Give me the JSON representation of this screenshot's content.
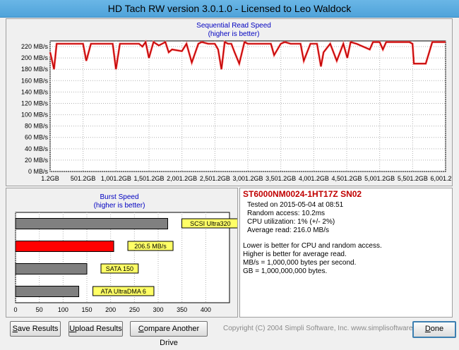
{
  "window": {
    "title": "HD Tach RW version 3.0.1.0 - Licensed to Leo Waldock"
  },
  "read_chart": {
    "title": "Sequential Read Speed",
    "subtitle": "(higher is better)",
    "y_tick_labels": [
      "0 MB/s",
      "20 MB/s",
      "40 MB/s",
      "60 MB/s",
      "80 MB/s",
      "100 MB/s",
      "120 MB/s",
      "140 MB/s",
      "160 MB/s",
      "180 MB/s",
      "200 MB/s",
      "220 MB/s"
    ],
    "x_tick_labels": [
      "1.2GB",
      "501.2GB",
      "1,001.2GB",
      "1,501.2GB",
      "2,001.2GB",
      "2,501.2GB",
      "3,001.2GB",
      "3,501.2GB",
      "4,001.2GB",
      "4,501.2GB",
      "5,001.2GB",
      "5,501.2GB",
      "6,001.2GB"
    ]
  },
  "burst_chart": {
    "title": "Burst Speed",
    "subtitle": "(higher is better)",
    "x_tick_labels": [
      "0",
      "50",
      "100",
      "150",
      "200",
      "250",
      "300",
      "350",
      "400"
    ]
  },
  "info": {
    "drive": "ST6000NM0024-1HT17Z SN02",
    "tested_on": "Tested on 2015-05-04 at 08:51",
    "random_access": "Random access: 10.2ms",
    "cpu": "CPU utilization: 1% (+/- 2%)",
    "avg_read": "Average read: 216.0 MB/s",
    "note1": "Lower is better for CPU and random access.",
    "note2": "Higher is better for average read.",
    "note3": "MB/s = 1,000,000 bytes per second.",
    "note4": "GB = 1,000,000,000 bytes."
  },
  "buttons": {
    "save_u": "S",
    "save_rest": "ave Results",
    "upload_u": "U",
    "upload_rest": "pload Results",
    "compare_u": "C",
    "compare_rest": "ompare Another Drive",
    "done_u": "D",
    "done_rest": "one"
  },
  "copyright": "Copyright (C) 2004 Simpli Software, Inc. www.simplisoftware.com",
  "colors": {
    "read_line": "#c00000",
    "burst_highlight": "#ff0000",
    "bar_gray": "#808080",
    "label_yellow": "#ffff66"
  },
  "chart_data": [
    {
      "type": "line",
      "title": "Sequential Read Speed",
      "subtitle": "(higher is better)",
      "xlabel": "",
      "ylabel": "",
      "xlim": [
        1.2,
        6001.2
      ],
      "ylim": [
        0,
        230
      ],
      "grid": true,
      "series": [
        {
          "x": [
            1.2,
            60,
            100,
            150,
            500,
            550,
            620,
            950,
            1000,
            1060,
            1350,
            1400,
            1450,
            1500,
            1570,
            1650,
            1750,
            1800,
            1850,
            2000,
            2070,
            2150,
            2250,
            2300,
            2400,
            2500,
            2550,
            2600,
            2650,
            2700,
            2750,
            2800,
            2870,
            2950,
            3000,
            3350,
            3400,
            3500,
            3560,
            3650,
            3800,
            3850,
            3950,
            4050,
            4110,
            4150,
            4250,
            4350,
            4450,
            4510,
            4560,
            4650,
            4850,
            4900,
            5000,
            5050,
            5100,
            5400,
            5450,
            5500,
            5520,
            5700,
            5800,
            5850,
            5950,
            6001.2
          ],
          "y": [
            210,
            180,
            225,
            225,
            225,
            195,
            225,
            225,
            180,
            225,
            225,
            220,
            228,
            200,
            228,
            222,
            228,
            210,
            215,
            212,
            225,
            192,
            225,
            228,
            225,
            225,
            215,
            180,
            228,
            225,
            225,
            210,
            190,
            228,
            225,
            225,
            205,
            225,
            228,
            225,
            225,
            195,
            225,
            225,
            185,
            210,
            225,
            195,
            225,
            200,
            228,
            225,
            215,
            228,
            228,
            215,
            228,
            228,
            228,
            225,
            190,
            190,
            228,
            228,
            228,
            228
          ]
        }
      ]
    },
    {
      "type": "bar",
      "title": "Burst Speed",
      "subtitle": "(higher is better)",
      "categories": [
        "SCSI Ultra320",
        "206.5 MB/s",
        "SATA 150",
        "ATA UltraDMA 6"
      ],
      "values": [
        320,
        206.5,
        150,
        133
      ],
      "xlim": [
        0,
        450
      ],
      "grid": true
    }
  ]
}
